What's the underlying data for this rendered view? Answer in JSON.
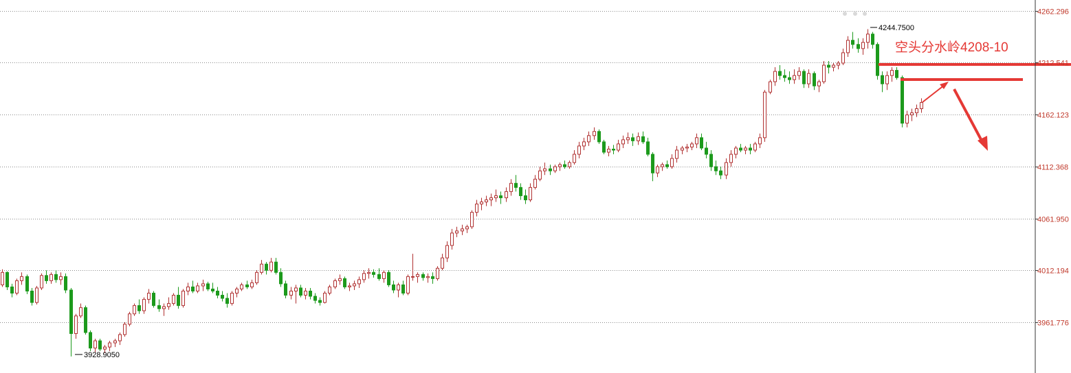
{
  "chart_data": {
    "type": "candlestick",
    "title": "",
    "xlabel": "",
    "ylabel": "",
    "ylim": [
      3915,
      4275
    ],
    "y_ticks": [
      "4262.296",
      "4212.541",
      "4162.123",
      "4112.368",
      "4061.950",
      "4012.194",
      "3961.776"
    ],
    "grid": true,
    "extremes": {
      "high_label": "4244.7500",
      "low_label": "3928.9050"
    },
    "annotation": {
      "text": "空头分水岭4208-10",
      "level_low": 4208,
      "level_high": 4210
    },
    "candles": [
      [
        3998,
        4013,
        3996,
        4010
      ],
      [
        4010,
        4011,
        3993,
        3996
      ],
      [
        3996,
        3999,
        3986,
        3990
      ],
      [
        3990,
        4004,
        3988,
        4002
      ],
      [
        4002,
        4010,
        3998,
        4006
      ],
      [
        4006,
        4008,
        3989,
        3992
      ],
      [
        3992,
        3995,
        3978,
        3981
      ],
      [
        3981,
        3997,
        3979,
        3995
      ],
      [
        3995,
        4009,
        3993,
        4007
      ],
      [
        4007,
        4012,
        3999,
        4002
      ],
      [
        4002,
        4010,
        3999,
        4008
      ],
      [
        4008,
        4012,
        4000,
        4003
      ],
      [
        4003,
        4010,
        3998,
        4006
      ],
      [
        4006,
        4009,
        3990,
        3993
      ],
      [
        3993,
        3995,
        3928.905,
        3951
      ],
      [
        3951,
        3970,
        3946,
        3968
      ],
      [
        3968,
        3980,
        3966,
        3976
      ],
      [
        3976,
        3978,
        3950,
        3952
      ],
      [
        3952,
        3954,
        3934,
        3937
      ],
      [
        3937,
        3946,
        3933,
        3944
      ],
      [
        3944,
        3946,
        3934,
        3936
      ],
      [
        3936,
        3940,
        3932,
        3938
      ],
      [
        3938,
        3944,
        3934,
        3942
      ],
      [
        3942,
        3946,
        3938,
        3944
      ],
      [
        3944,
        3952,
        3940,
        3950
      ],
      [
        3950,
        3962,
        3948,
        3960
      ],
      [
        3960,
        3972,
        3958,
        3970
      ],
      [
        3970,
        3980,
        3968,
        3978
      ],
      [
        3978,
        3984,
        3970,
        3973
      ],
      [
        3973,
        3986,
        3970,
        3984
      ],
      [
        3984,
        3994,
        3980,
        3990
      ],
      [
        3990,
        3992,
        3976,
        3978
      ],
      [
        3978,
        3984,
        3972,
        3975
      ],
      [
        3975,
        3980,
        3968,
        3977
      ],
      [
        3977,
        3986,
        3974,
        3980
      ],
      [
        3980,
        3990,
        3978,
        3988
      ],
      [
        3988,
        3996,
        3975,
        3978
      ],
      [
        3978,
        3994,
        3976,
        3992
      ],
      [
        3992,
        4000,
        3988,
        3996
      ],
      [
        3996,
        4002,
        3990,
        3992
      ],
      [
        3992,
        4000,
        3990,
        3997
      ],
      [
        3997,
        4003,
        3992,
        3999
      ],
      [
        3999,
        4001,
        3992,
        3994
      ],
      [
        3994,
        4000,
        3990,
        3992
      ],
      [
        3992,
        3996,
        3985,
        3988
      ],
      [
        3988,
        3992,
        3982,
        3985
      ],
      [
        3985,
        3990,
        3976,
        3980
      ],
      [
        3980,
        3992,
        3978,
        3990
      ],
      [
        3990,
        3996,
        3986,
        3994
      ],
      [
        3994,
        4000,
        3992,
        3998
      ],
      [
        3998,
        4002,
        3994,
        3996
      ],
      [
        3996,
        4003,
        3994,
        4000
      ],
      [
        4000,
        4012,
        3998,
        4010
      ],
      [
        4010,
        4022,
        4008,
        4018
      ],
      [
        4018,
        4020,
        4008,
        4012
      ],
      [
        4012,
        4024,
        4010,
        4020
      ],
      [
        4020,
        4024,
        4008,
        4010
      ],
      [
        4010,
        4014,
        3996,
        3999
      ],
      [
        3999,
        4002,
        3985,
        3988
      ],
      [
        3988,
        3996,
        3984,
        3992
      ],
      [
        3992,
        3998,
        3980,
        3995
      ],
      [
        3995,
        3998,
        3986,
        3988
      ],
      [
        3988,
        3995,
        3984,
        3992
      ],
      [
        3992,
        3995,
        3984,
        3987
      ],
      [
        3987,
        3990,
        3980,
        3983
      ],
      [
        3983,
        3986,
        3978,
        3981
      ],
      [
        3981,
        3992,
        3980,
        3990
      ],
      [
        3990,
        3998,
        3988,
        3996
      ],
      [
        3996,
        4004,
        3994,
        4002
      ],
      [
        4002,
        4008,
        3998,
        4004
      ],
      [
        4004,
        4006,
        3994,
        3996
      ],
      [
        3996,
        4000,
        3992,
        3997
      ],
      [
        3997,
        4002,
        3993,
        3999
      ],
      [
        3999,
        4006,
        3995,
        4003
      ],
      [
        4003,
        4012,
        4000,
        4009
      ],
      [
        4009,
        4014,
        4004,
        4010
      ],
      [
        4010,
        4013,
        4005,
        4008
      ],
      [
        4008,
        4014,
        4002,
        4004
      ],
      [
        4004,
        4012,
        4000,
        4010
      ],
      [
        4010,
        4012,
        3996,
        3998
      ],
      [
        3998,
        4002,
        3990,
        3993
      ],
      [
        3993,
        4000,
        3986,
        3998
      ],
      [
        3998,
        4002,
        3988,
        3990
      ],
      [
        3990,
        4008,
        3988,
        4006
      ],
      [
        4006,
        4028,
        4002,
        4006
      ],
      [
        4006,
        4010,
        4000,
        4008
      ],
      [
        4008,
        4010,
        4002,
        4005
      ],
      [
        4005,
        4009,
        4000,
        4006
      ],
      [
        4006,
        4010,
        3999,
        4004
      ],
      [
        4004,
        4016,
        4002,
        4014
      ],
      [
        4014,
        4028,
        4012,
        4024
      ],
      [
        4024,
        4040,
        4020,
        4036
      ],
      [
        4036,
        4052,
        4032,
        4048
      ],
      [
        4048,
        4054,
        4044,
        4050
      ],
      [
        4050,
        4056,
        4046,
        4052
      ],
      [
        4052,
        4056,
        4048,
        4054
      ],
      [
        4054,
        4070,
        4052,
        4068
      ],
      [
        4068,
        4080,
        4064,
        4076
      ],
      [
        4076,
        4082,
        4070,
        4078
      ],
      [
        4078,
        4084,
        4074,
        4080
      ],
      [
        4080,
        4086,
        4074,
        4082
      ],
      [
        4082,
        4090,
        4078,
        4084
      ],
      [
        4084,
        4088,
        4076,
        4082
      ],
      [
        4082,
        4092,
        4078,
        4088
      ],
      [
        4088,
        4100,
        4084,
        4096
      ],
      [
        4096,
        4104,
        4088,
        4092
      ],
      [
        4092,
        4096,
        4080,
        4084
      ],
      [
        4084,
        4090,
        4076,
        4080
      ],
      [
        4080,
        4096,
        4078,
        4092
      ],
      [
        4092,
        4104,
        4090,
        4100
      ],
      [
        4100,
        4112,
        4098,
        4108
      ],
      [
        4108,
        4116,
        4104,
        4110
      ],
      [
        4110,
        4114,
        4104,
        4108
      ],
      [
        4108,
        4114,
        4106,
        4112
      ],
      [
        4112,
        4116,
        4108,
        4114
      ],
      [
        4114,
        4118,
        4110,
        4112
      ],
      [
        4112,
        4118,
        4110,
        4116
      ],
      [
        4116,
        4128,
        4114,
        4124
      ],
      [
        4124,
        4136,
        4120,
        4132
      ],
      [
        4132,
        4140,
        4128,
        4136
      ],
      [
        4136,
        4146,
        4132,
        4142
      ],
      [
        4142,
        4150,
        4138,
        4146
      ],
      [
        4146,
        4148,
        4134,
        4136
      ],
      [
        4136,
        4138,
        4124,
        4126
      ],
      [
        4126,
        4132,
        4122,
        4129
      ],
      [
        4129,
        4133,
        4124,
        4128
      ],
      [
        4128,
        4138,
        4126,
        4134
      ],
      [
        4134,
        4142,
        4130,
        4138
      ],
      [
        4138,
        4145,
        4134,
        4140
      ],
      [
        4140,
        4144,
        4132,
        4137
      ],
      [
        4137,
        4145,
        4133,
        4141
      ],
      [
        4141,
        4146,
        4134,
        4136
      ],
      [
        4136,
        4140,
        4122,
        4124
      ],
      [
        4124,
        4126,
        4098,
        4106
      ],
      [
        4106,
        4114,
        4102,
        4112
      ],
      [
        4112,
        4116,
        4108,
        4114
      ],
      [
        4114,
        4118,
        4110,
        4112
      ],
      [
        4112,
        4124,
        4110,
        4120
      ],
      [
        4120,
        4132,
        4116,
        4128
      ],
      [
        4128,
        4132,
        4124,
        4130
      ],
      [
        4130,
        4134,
        4126,
        4131
      ],
      [
        4131,
        4136,
        4128,
        4134
      ],
      [
        4134,
        4144,
        4130,
        4140
      ],
      [
        4140,
        4144,
        4128,
        4130
      ],
      [
        4130,
        4136,
        4120,
        4124
      ],
      [
        4124,
        4128,
        4108,
        4112
      ],
      [
        4112,
        4118,
        4104,
        4108
      ],
      [
        4108,
        4112,
        4100,
        4104
      ],
      [
        4104,
        4120,
        4100,
        4116
      ],
      [
        4116,
        4128,
        4112,
        4124
      ],
      [
        4124,
        4132,
        4120,
        4130
      ],
      [
        4130,
        4134,
        4126,
        4128
      ],
      [
        4128,
        4132,
        4124,
        4130
      ],
      [
        4130,
        4134,
        4124,
        4128
      ],
      [
        4128,
        4136,
        4126,
        4134
      ],
      [
        4134,
        4144,
        4130,
        4140
      ],
      [
        4140,
        4186,
        4136,
        4184
      ],
      [
        4184,
        4196,
        4182,
        4194
      ],
      [
        4194,
        4208,
        4190,
        4204
      ],
      [
        4204,
        4210,
        4196,
        4200
      ],
      [
        4200,
        4206,
        4194,
        4198
      ],
      [
        4198,
        4204,
        4192,
        4196
      ],
      [
        4196,
        4206,
        4192,
        4200
      ],
      [
        4200,
        4208,
        4196,
        4204
      ],
      [
        4204,
        4206,
        4188,
        4192
      ],
      [
        4192,
        4206,
        4188,
        4202
      ],
      [
        4202,
        4204,
        4186,
        4190
      ],
      [
        4190,
        4196,
        4184,
        4194
      ],
      [
        4194,
        4214,
        4192,
        4210
      ],
      [
        4210,
        4214,
        4202,
        4208
      ],
      [
        4208,
        4212,
        4204,
        4210
      ],
      [
        4210,
        4214,
        4206,
        4212
      ],
      [
        4212,
        4226,
        4210,
        4222
      ],
      [
        4222,
        4238,
        4218,
        4234
      ],
      [
        4234,
        4242,
        4226,
        4230
      ],
      [
        4230,
        4236,
        4222,
        4226
      ],
      [
        4226,
        4236,
        4220,
        4232
      ],
      [
        4232,
        4244.75,
        4226,
        4240
      ],
      [
        4240,
        4242,
        4226,
        4230
      ],
      [
        4230,
        4232,
        4196,
        4200
      ],
      [
        4200,
        4204,
        4184,
        4192
      ],
      [
        4192,
        4204,
        4186,
        4200
      ],
      [
        4200,
        4208,
        4194,
        4205
      ],
      [
        4205,
        4208,
        4196,
        4198
      ],
      [
        4198,
        4200,
        4150,
        4154
      ],
      [
        4154,
        4166,
        4150,
        4162
      ],
      [
        4162,
        4168,
        4156,
        4164
      ],
      [
        4164,
        4172,
        4160,
        4168
      ],
      [
        4168,
        4178,
        4164,
        4174
      ]
    ]
  }
}
